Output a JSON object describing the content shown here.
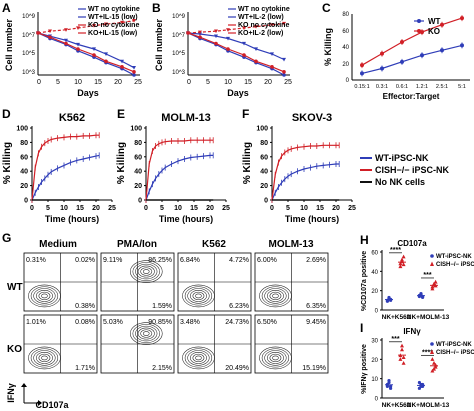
{
  "colors": {
    "wt": "#2f3db8",
    "ko": "#d11f26",
    "none": "#111111"
  },
  "panels": {
    "A": {
      "letter": "A",
      "xlabel": "Days",
      "ylabel": "Cell number",
      "yticks": [
        "10^9",
        "10^7",
        "10^5",
        "10^3"
      ],
      "xticks": [
        "0",
        "5",
        "10",
        "15",
        "20",
        "25"
      ],
      "legend": [
        "WT no cytokine",
        "WT+IL-15 (low)",
        "KO no cytokine",
        "KO+IL-15 (low)"
      ]
    },
    "B": {
      "letter": "B",
      "xlabel": "Days",
      "ylabel": "Cell number",
      "yticks": [
        "10^9",
        "10^7",
        "10^5",
        "10^3"
      ],
      "xticks": [
        "0",
        "5",
        "10",
        "15",
        "20",
        "25"
      ],
      "legend": [
        "WT no cytokine",
        "WT+IL-2 (low)",
        "KO no cytokine",
        "KO+IL-2 (low)"
      ]
    },
    "C": {
      "letter": "C",
      "xlabel": "Effector:Target",
      "ylabel": "% Killing",
      "yticks": [
        "0",
        "20",
        "40",
        "60",
        "80"
      ],
      "xticks": [
        "0.15:1",
        "0.3:1",
        "0.6:1",
        "1.2:1",
        "2.5:1",
        "5:1"
      ],
      "legend": [
        "WT",
        "KO"
      ]
    },
    "D": {
      "letter": "D",
      "title": "K562",
      "xlabel": "Time (hours)",
      "ylabel": "% Killing",
      "yticks": [
        "0",
        "20",
        "40",
        "60",
        "80",
        "100"
      ],
      "xticks": [
        "0",
        "5",
        "10",
        "15",
        "20",
        "25"
      ]
    },
    "E": {
      "letter": "E",
      "title": "MOLM-13",
      "xlabel": "Time (hours)",
      "ylabel": "% Killing",
      "yticks": [
        "0",
        "20",
        "40",
        "60",
        "80",
        "100"
      ],
      "xticks": [
        "0",
        "5",
        "10",
        "15",
        "20",
        "25"
      ]
    },
    "F": {
      "letter": "F",
      "title": "SKOV-3",
      "xlabel": "Time (hours)",
      "ylabel": "% Killing",
      "yticks": [
        "0",
        "20",
        "40",
        "60",
        "80",
        "100"
      ],
      "xticks": [
        "0",
        "5",
        "10",
        "15",
        "20",
        "25"
      ]
    },
    "G": {
      "letter": "G",
      "columns": [
        "Medium",
        "PMA/Ion",
        "K562",
        "MOLM-13"
      ],
      "rows": [
        "WT",
        "KO"
      ],
      "xlabel": "CD107a",
      "ylabel": "IFNγ",
      "quadrants": [
        [
          "0.31%",
          "0.02%",
          "",
          "0.38%"
        ],
        [
          "9.11%",
          "86.25%",
          "",
          "1.59%"
        ],
        [
          "6.84%",
          "4.72%",
          "",
          "6.23%"
        ],
        [
          "6.00%",
          "2.69%",
          "",
          "6.35%"
        ],
        [
          "1.01%",
          "0.08%",
          "",
          "1.71%"
        ],
        [
          "5.03%",
          "90.85%",
          "",
          "2.15%"
        ],
        [
          "3.48%",
          "24.73%",
          "",
          "20.49%"
        ],
        [
          "6.50%",
          "9.45%",
          "",
          "15.19%"
        ]
      ]
    },
    "H": {
      "letter": "H",
      "title": "CD107a",
      "ylabel": "%CD107a positive",
      "yticks": [
        "0",
        "20",
        "40",
        "60"
      ],
      "xticks": [
        "NK+K562",
        "NK+MOLM-13"
      ],
      "sig": [
        "****",
        "***"
      ],
      "legend": [
        "WT-iPSC-NK",
        "CISH−/− iPSC-NK"
      ]
    },
    "I": {
      "letter": "I",
      "title": "IFNγ",
      "ylabel": "%IFNγ positive",
      "yticks": [
        "0",
        "10",
        "20",
        "30"
      ],
      "xticks": [
        "NK+K562",
        "NK+MOLM-13"
      ],
      "sig": [
        "***",
        "****"
      ],
      "legend": [
        "WT-iPSC-NK",
        "CISH−/− iPSC-NK"
      ]
    }
  },
  "legend_DEF": [
    "WT-iPSC-NK",
    "CISH−/− iPSC-NK",
    "No NK cells"
  ],
  "chart_data": [
    {
      "type": "line",
      "title": "",
      "xlabel": "Days",
      "ylabel": "Cell number",
      "yscale": "log",
      "x": [
        0,
        3,
        7,
        10,
        14,
        17,
        21,
        24
      ],
      "series": [
        {
          "name": "WT no cytokine",
          "values": [
            10000000.0,
            3000000.0,
            800000.0,
            200000.0,
            50000.0,
            15000.0,
            4000.0,
            1000.0
          ]
        },
        {
          "name": "WT+IL-15 (low)",
          "values": [
            10000000.0,
            5000000.0,
            2000000.0,
            800000.0,
            300000.0,
            100000.0,
            20000.0,
            5000.0
          ]
        },
        {
          "name": "KO no cytokine",
          "values": [
            10000000.0,
            4000000.0,
            1000000.0,
            300000.0,
            80000.0,
            20000.0,
            6000.0,
            2000.0
          ]
        },
        {
          "name": "KO+IL-15 (low)",
          "values": [
            10000000.0,
            15000000.0,
            20000000.0,
            30000000.0,
            50000000.0,
            70000000.0,
            100000000.0,
            150000000.0
          ]
        }
      ]
    },
    {
      "type": "line",
      "title": "",
      "xlabel": "Days",
      "ylabel": "Cell number",
      "yscale": "log",
      "x": [
        0,
        3,
        7,
        10,
        14,
        17,
        21,
        24
      ],
      "series": [
        {
          "name": "WT no cytokine",
          "values": [
            10000000.0,
            3000000.0,
            800000.0,
            200000.0,
            50000.0,
            15000.0,
            4000.0,
            1000.0
          ]
        },
        {
          "name": "WT+IL-2 (low)",
          "values": [
            10000000.0,
            8000000.0,
            5000000.0,
            3000000.0,
            1000000.0,
            300000.0,
            100000.0,
            30000.0
          ]
        },
        {
          "name": "KO no cytokine",
          "values": [
            10000000.0,
            4000000.0,
            1000000.0,
            300000.0,
            80000.0,
            20000.0,
            6000.0,
            2000.0
          ]
        },
        {
          "name": "KO+IL-2 (low)",
          "values": [
            10000000.0,
            12000000.0,
            15000000.0,
            20000000.0,
            30000000.0,
            40000000.0,
            60000000.0,
            80000000.0
          ]
        }
      ]
    },
    {
      "type": "line",
      "title": "",
      "xlabel": "Effector:Target",
      "ylabel": "% Killing",
      "categories": [
        "0.15:1",
        "0.3:1",
        "0.6:1",
        "1.2:1",
        "2.5:1",
        "5:1"
      ],
      "series": [
        {
          "name": "WT",
          "values": [
            8,
            14,
            22,
            30,
            36,
            42
          ]
        },
        {
          "name": "KO",
          "values": [
            18,
            32,
            46,
            58,
            67,
            75
          ]
        }
      ],
      "ylim": [
        0,
        80
      ]
    },
    {
      "type": "line",
      "title": "K562",
      "xlabel": "Time (hours)",
      "ylabel": "% Killing",
      "x": [
        0,
        1,
        2,
        3,
        4,
        5,
        6,
        8,
        10,
        12,
        14,
        16,
        18,
        20,
        21
      ],
      "series": [
        {
          "name": "WT-iPSC-NK",
          "values": [
            0,
            10,
            18,
            25,
            30,
            35,
            39,
            44,
            48,
            52,
            55,
            57,
            59,
            61,
            62
          ]
        },
        {
          "name": "CISH−/− iPSC-NK",
          "values": [
            0,
            45,
            65,
            74,
            79,
            82,
            84,
            86,
            87,
            88,
            88,
            89,
            89,
            90,
            90
          ]
        },
        {
          "name": "No NK cells",
          "values": [
            0,
            0,
            0,
            0,
            0,
            0,
            0,
            0,
            0,
            0,
            0,
            0,
            0,
            0,
            0
          ]
        }
      ],
      "xlim": [
        0,
        25
      ],
      "ylim": [
        0,
        100
      ]
    },
    {
      "type": "line",
      "title": "MOLM-13",
      "xlabel": "Time (hours)",
      "ylabel": "% Killing",
      "x": [
        0,
        1,
        2,
        3,
        4,
        5,
        6,
        8,
        10,
        12,
        14,
        16,
        18,
        20,
        21
      ],
      "series": [
        {
          "name": "WT-iPSC-NK",
          "values": [
            0,
            12,
            22,
            30,
            36,
            41,
            45,
            50,
            54,
            57,
            59,
            60,
            61,
            62,
            62
          ]
        },
        {
          "name": "CISH−/− iPSC-NK",
          "values": [
            0,
            50,
            68,
            75,
            78,
            80,
            81,
            82,
            82,
            82,
            83,
            83,
            83,
            83,
            83
          ]
        },
        {
          "name": "No NK cells",
          "values": [
            0,
            0,
            0,
            0,
            0,
            0,
            0,
            0,
            0,
            0,
            0,
            0,
            0,
            0,
            0
          ]
        }
      ],
      "xlim": [
        0,
        25
      ],
      "ylim": [
        0,
        100
      ]
    },
    {
      "type": "line",
      "title": "SKOV-3",
      "xlabel": "Time (hours)",
      "ylabel": "% Killing",
      "x": [
        0,
        1,
        2,
        3,
        4,
        5,
        6,
        8,
        10,
        12,
        14,
        16,
        18,
        20,
        21
      ],
      "series": [
        {
          "name": "WT-iPSC-NK",
          "values": [
            0,
            10,
            18,
            24,
            29,
            33,
            36,
            40,
            43,
            45,
            47,
            48,
            49,
            50,
            50
          ]
        },
        {
          "name": "CISH−/− iPSC-NK",
          "values": [
            0,
            35,
            52,
            61,
            66,
            69,
            71,
            73,
            74,
            75,
            75,
            76,
            76,
            76,
            76
          ]
        },
        {
          "name": "No NK cells",
          "values": [
            0,
            0,
            0,
            0,
            0,
            0,
            0,
            0,
            0,
            0,
            0,
            0,
            0,
            0,
            0
          ]
        }
      ],
      "xlim": [
        0,
        25
      ],
      "ylim": [
        0,
        100
      ]
    },
    {
      "type": "scatter",
      "title": "CD107a",
      "ylabel": "%CD107a positive",
      "categories": [
        "NK+K562",
        "NK+MOLM-13"
      ],
      "series": [
        {
          "name": "WT-iPSC-NK",
          "values": [
            [
              10,
              12,
              11,
              9,
              13,
              10
            ],
            [
              14,
              16,
              13,
              15,
              17,
              14
            ]
          ]
        },
        {
          "name": "CISH−/− iPSC-NK",
          "values": [
            [
              48,
              52,
              55,
              45,
              50,
              47
            ],
            [
              24,
              27,
              29,
              22,
              26,
              25
            ]
          ]
        }
      ],
      "ylim": [
        0,
        60
      ]
    },
    {
      "type": "scatter",
      "title": "IFNγ",
      "ylabel": "%IFNγ positive",
      "categories": [
        "NK+K562",
        "NK+MOLM-13"
      ],
      "series": [
        {
          "name": "WT-iPSC-NK",
          "values": [
            [
              6,
              8,
              5,
              7,
              9,
              6
            ],
            [
              5,
              7,
              6,
              8,
              6,
              7
            ]
          ]
        },
        {
          "name": "CISH−/− iPSC-NK",
          "values": [
            [
              20,
              25,
              18,
              22,
              27,
              21
            ],
            [
              14,
              18,
              16,
              20,
              15,
              17
            ]
          ]
        }
      ],
      "ylim": [
        0,
        30
      ]
    }
  ]
}
